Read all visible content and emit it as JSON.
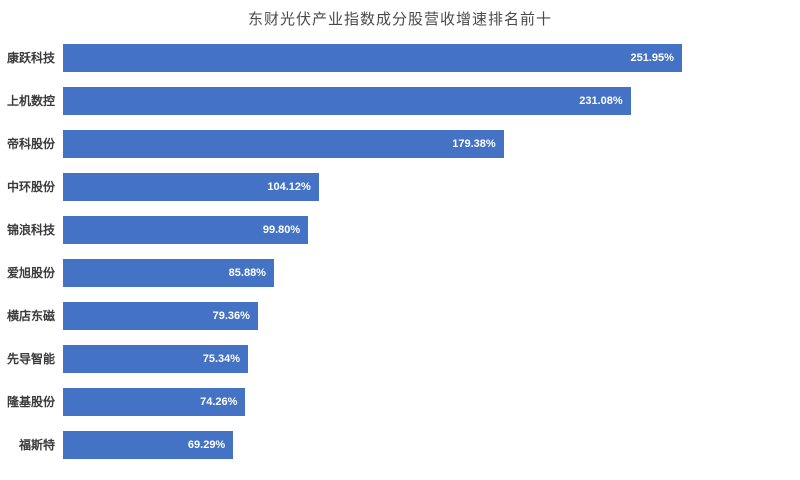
{
  "chart_data": {
    "type": "bar",
    "orientation": "horizontal",
    "title": "东财光伏产业指数成分股营收增速排名前十",
    "categories": [
      "康跃科技",
      "上机数控",
      "帝科股份",
      "中环股份",
      "锦浪科技",
      "爱旭股份",
      "横店东磁",
      "先导智能",
      "隆基股份",
      "福斯特"
    ],
    "values": [
      251.95,
      231.08,
      179.38,
      104.12,
      99.8,
      85.88,
      79.36,
      75.34,
      74.26,
      69.29
    ],
    "value_labels": [
      "251.95%",
      "231.08%",
      "179.38%",
      "104.12%",
      "99.80%",
      "85.88%",
      "79.36%",
      "75.34%",
      "74.26%",
      "69.29%"
    ],
    "unit": "%",
    "xlim": [
      0,
      300
    ],
    "grid": false,
    "legend": false,
    "data_labels": "inside-end",
    "bar_color": "#4472C4",
    "value_label_color": "#FFFFFF",
    "category_label_color": "#3B3B3B",
    "title_color": "#4A4A4A",
    "background": "#FFFFFF"
  }
}
